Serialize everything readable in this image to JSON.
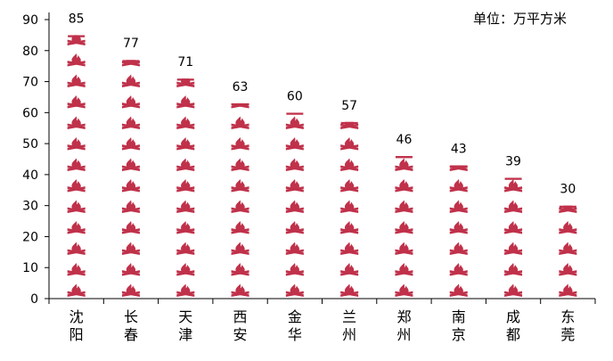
{
  "unit_label": "单位：万平方米",
  "colors": {
    "fire": "#c0314a",
    "axis": "#000000",
    "text": "#000000"
  },
  "icon": "flame-icon",
  "chart_data": {
    "type": "bar",
    "style": "pictograph",
    "categories": [
      [
        "沈",
        "阳"
      ],
      [
        "长",
        "春"
      ],
      [
        "天",
        "津"
      ],
      [
        "西",
        "安"
      ],
      [
        "金",
        "华"
      ],
      [
        "兰",
        "州"
      ],
      [
        "郑",
        "州"
      ],
      [
        "南",
        "京"
      ],
      [
        "成",
        "都"
      ],
      [
        "东",
        "莞"
      ]
    ],
    "values": [
      85,
      77,
      71,
      63,
      60,
      57,
      46,
      43,
      39,
      30
    ],
    "value_labels": [
      "85",
      "77",
      "71",
      "63",
      "60",
      "57",
      "46",
      "43",
      "39",
      "30"
    ],
    "yticks": [
      "0",
      "10",
      "20",
      "30",
      "40",
      "50",
      "60",
      "70",
      "80",
      "90"
    ],
    "ylim": [
      0,
      90
    ],
    "unit": "单位：万平方米",
    "grid": false,
    "legend": "none"
  }
}
